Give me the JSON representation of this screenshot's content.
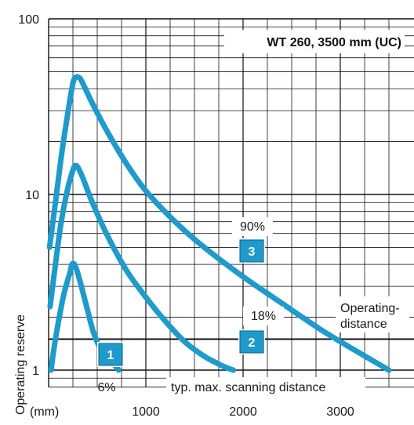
{
  "chart_data": {
    "type": "line",
    "title": "WT 260, 3500 mm (UC)",
    "xlabel": "(mm)",
    "ylabel": "Operating reserve",
    "x_ticks": [
      1000,
      2000,
      3000
    ],
    "y_ticks": [
      1,
      10,
      100
    ],
    "xlim": [
      0,
      3600
    ],
    "ylim": [
      0.8,
      100
    ],
    "yscale": "log",
    "grid": true,
    "colors": {
      "curve": "#1e9bcc",
      "badge": "#1e9bcc",
      "grid": "#111111"
    },
    "operating_distance_line": {
      "y": 1.5,
      "label": "Operating-\ndistance"
    },
    "scanning_distance_label": "typ. max. scanning distance",
    "series": [
      {
        "name": "6%",
        "badge": "1",
        "label": "6%",
        "points": [
          [
            25,
            1.0
          ],
          [
            70,
            1.5
          ],
          [
            150,
            2.6
          ],
          [
            220,
            3.6
          ],
          [
            240,
            4.0
          ],
          [
            265,
            4.0
          ],
          [
            290,
            3.7
          ],
          [
            330,
            3.1
          ],
          [
            400,
            2.2
          ],
          [
            460,
            1.65
          ],
          [
            540,
            1.3
          ],
          [
            620,
            1.15
          ],
          [
            690,
            1.05
          ],
          [
            720,
            1.0
          ]
        ]
      },
      {
        "name": "18%",
        "badge": "2",
        "label": "18%",
        "points": [
          [
            15,
            2.3
          ],
          [
            70,
            4.0
          ],
          [
            130,
            7.0
          ],
          [
            200,
            11.0
          ],
          [
            255,
            14.0
          ],
          [
            275,
            14.6
          ],
          [
            300,
            14.3
          ],
          [
            350,
            12.5
          ],
          [
            450,
            9.0
          ],
          [
            600,
            5.9
          ],
          [
            800,
            3.7
          ],
          [
            1000,
            2.6
          ],
          [
            1200,
            1.9
          ],
          [
            1400,
            1.45
          ],
          [
            1600,
            1.2
          ],
          [
            1800,
            1.05
          ],
          [
            1900,
            1.0
          ]
        ]
      },
      {
        "name": "90%",
        "badge": "3",
        "label": "90%",
        "points": [
          [
            10,
            5.0
          ],
          [
            70,
            9.0
          ],
          [
            140,
            18.0
          ],
          [
            210,
            32.0
          ],
          [
            250,
            43.0
          ],
          [
            280,
            46.5
          ],
          [
            320,
            46.0
          ],
          [
            360,
            42.0
          ],
          [
            450,
            33.0
          ],
          [
            600,
            23.0
          ],
          [
            800,
            15.0
          ],
          [
            1000,
            10.5
          ],
          [
            1300,
            7.0
          ],
          [
            1600,
            5.0
          ],
          [
            2000,
            3.4
          ],
          [
            2400,
            2.4
          ],
          [
            2800,
            1.7
          ],
          [
            3200,
            1.25
          ],
          [
            3500,
            1.0
          ]
        ]
      }
    ]
  }
}
